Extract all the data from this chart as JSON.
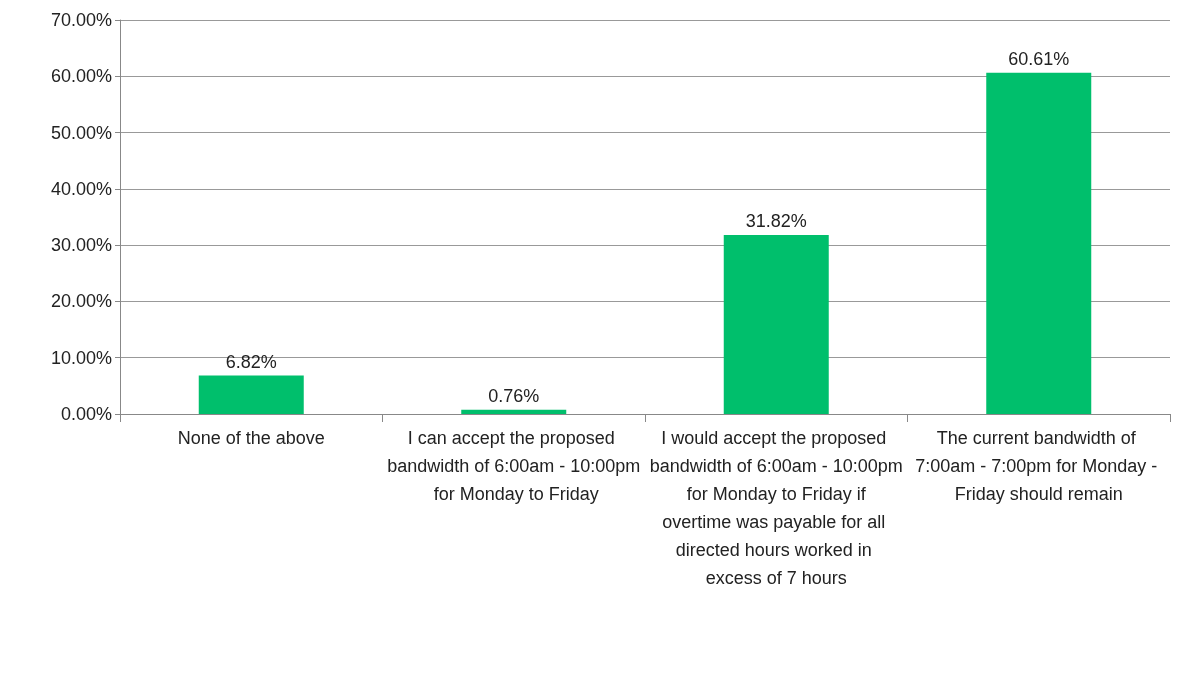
{
  "chart_data": {
    "type": "bar",
    "categories": [
      "None of the above",
      "I can accept the proposed bandwidth of 6:00am - 10:00pm for Monday to Friday",
      "I would accept the proposed bandwidth of 6:00am - 10:00pm for Monday to Friday if overtime was payable for all directed hours worked in excess of 7 hours",
      "The current bandwidth of 7:00am - 7:00pm for Monday - Friday should remain"
    ],
    "values": [
      6.82,
      0.76,
      31.82,
      60.61
    ],
    "value_labels": [
      "6.82%",
      "0.76%",
      "31.82%",
      "60.61%"
    ],
    "color": "#00bf6c",
    "ylim": [
      0,
      70
    ],
    "yticks": [
      {
        "value": 0,
        "label": "0.00%"
      },
      {
        "value": 10,
        "label": "10.00%"
      },
      {
        "value": 20,
        "label": "20.00%"
      },
      {
        "value": 30,
        "label": "30.00%"
      },
      {
        "value": 40,
        "label": "40.00%"
      },
      {
        "value": 50,
        "label": "50.00%"
      },
      {
        "value": 60,
        "label": "60.00%"
      },
      {
        "value": 70,
        "label": "70.00%"
      }
    ],
    "grid": "y"
  }
}
